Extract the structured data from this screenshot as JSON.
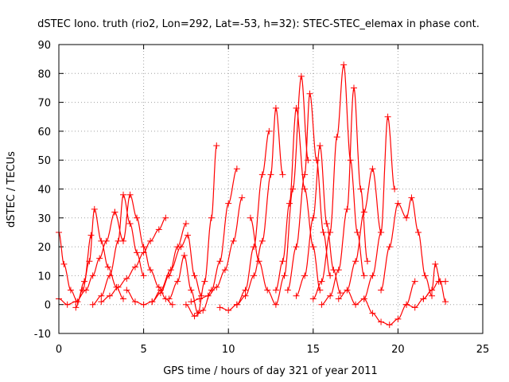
{
  "chart_data": {
    "type": "scatter",
    "title": "dSTEC Iono. truth (rio2, Lon=292, Lat=-53, h=32): STEC-STEC_elemax in phase cont.",
    "xlabel": "GPS time / hours of day 321 of year 2011",
    "ylabel": "dSTEC  / TECUs",
    "xlim": [
      0,
      25
    ],
    "ylim": [
      -10,
      90
    ],
    "xticks": [
      0,
      5,
      10,
      15,
      20,
      25
    ],
    "yticks": [
      -10,
      0,
      10,
      20,
      30,
      40,
      50,
      60,
      70,
      80,
      90
    ],
    "grid": true,
    "legend": "none",
    "marker": "plus",
    "color": "#ff0000",
    "series": [
      {
        "x": [
          0.0,
          0.3,
          0.7,
          1.1,
          1.5,
          1.9
        ],
        "y": [
          25,
          14,
          5,
          1,
          8,
          24
        ]
      },
      {
        "x": [
          0.0,
          0.5,
          1.0,
          1.6,
          2.0,
          2.4,
          2.8,
          3.3
        ],
        "y": [
          2,
          0,
          1,
          5,
          10,
          16,
          22,
          32
        ]
      },
      {
        "x": [
          1.0,
          1.4,
          1.8,
          2.1,
          2.5,
          2.9,
          3.4,
          3.8
        ],
        "y": [
          -1,
          5,
          15,
          33,
          22,
          13,
          6,
          2
        ]
      },
      {
        "x": [
          2.0,
          2.5,
          3.0,
          3.5,
          3.8,
          4.2,
          4.6,
          5.0
        ],
        "y": [
          0,
          3,
          10,
          22,
          38,
          28,
          18,
          10
        ]
      },
      {
        "x": [
          3.3,
          3.8,
          4.2,
          4.6,
          5.0,
          5.4,
          5.9,
          6.3,
          6.7
        ],
        "y": [
          32,
          22,
          38,
          30,
          20,
          12,
          6,
          2,
          0
        ]
      },
      {
        "x": [
          2.5,
          3.0,
          3.5,
          4.0,
          4.5,
          5.0,
          5.4,
          5.9,
          6.3
        ],
        "y": [
          1,
          3,
          6,
          9,
          13,
          18,
          22,
          26,
          30
        ]
      },
      {
        "x": [
          4.0,
          4.5,
          5.0,
          5.5,
          6.0,
          6.5,
          7.0,
          7.5
        ],
        "y": [
          5,
          1,
          0,
          1,
          4,
          10,
          20,
          28
        ]
      },
      {
        "x": [
          5.5,
          6.0,
          6.6,
          7.2,
          7.6,
          8.0,
          8.4
        ],
        "y": [
          1,
          5,
          12,
          20,
          24,
          10,
          3
        ]
      },
      {
        "x": [
          6.5,
          7.0,
          7.4,
          7.8,
          8.2,
          8.6,
          9.0,
          9.3
        ],
        "y": [
          2,
          8,
          17,
          5,
          -3,
          8,
          30,
          55
        ]
      },
      {
        "x": [
          7.5,
          8.0,
          8.5,
          9.0,
          9.5,
          10.0,
          10.5
        ],
        "y": [
          0,
          -4,
          -2,
          5,
          15,
          35,
          47
        ]
      },
      {
        "x": [
          7.8,
          8.3,
          8.8,
          9.3,
          9.8,
          10.3,
          10.8
        ],
        "y": [
          1,
          2,
          3,
          6,
          12,
          22,
          37
        ]
      },
      {
        "x": [
          9.5,
          10.0,
          10.5,
          11.0,
          11.5,
          12.0,
          12.4
        ],
        "y": [
          -1,
          -2,
          0,
          5,
          20,
          45,
          60
        ]
      },
      {
        "x": [
          10.5,
          11.0,
          11.5,
          12.0,
          12.5,
          12.8,
          13.2
        ],
        "y": [
          0,
          3,
          10,
          22,
          45,
          68,
          45
        ]
      },
      {
        "x": [
          11.3,
          11.8,
          12.3,
          12.8,
          13.3,
          13.8,
          14.3,
          14.7
        ],
        "y": [
          30,
          15,
          5,
          0,
          10,
          40,
          79,
          50
        ]
      },
      {
        "x": [
          12.8,
          13.2,
          13.6,
          14.0,
          14.5,
          15.0,
          15.4
        ],
        "y": [
          5,
          15,
          35,
          68,
          40,
          20,
          5
        ]
      },
      {
        "x": [
          13.5,
          14.0,
          14.5,
          14.8,
          15.2,
          15.6,
          16.0
        ],
        "y": [
          5,
          20,
          45,
          73,
          50,
          25,
          10
        ]
      },
      {
        "x": [
          14.0,
          14.5,
          15.0,
          15.4,
          15.8,
          16.2,
          16.6
        ],
        "y": [
          3,
          10,
          30,
          55,
          28,
          12,
          4
        ]
      },
      {
        "x": [
          15.0,
          15.5,
          16.0,
          16.4,
          16.8,
          17.2,
          17.6,
          18.0
        ],
        "y": [
          2,
          8,
          25,
          58,
          83,
          50,
          25,
          10
        ]
      },
      {
        "x": [
          15.5,
          16.0,
          16.5,
          17.0,
          17.4,
          17.8,
          18.2
        ],
        "y": [
          0,
          3,
          12,
          33,
          75,
          40,
          15
        ]
      },
      {
        "x": [
          16.5,
          17.0,
          17.5,
          18.0,
          18.5,
          19.0
        ],
        "y": [
          2,
          5,
          15,
          32,
          47,
          25
        ]
      },
      {
        "x": [
          17.0,
          17.5,
          18.0,
          18.5,
          19.0,
          19.4,
          19.8
        ],
        "y": [
          5,
          0,
          2,
          10,
          25,
          65,
          40
        ]
      },
      {
        "x": [
          18.0,
          18.5,
          19.0,
          19.5,
          20.0,
          20.5,
          21.0
        ],
        "y": [
          2,
          -3,
          -6,
          -7,
          -5,
          0,
          8
        ]
      },
      {
        "x": [
          19.0,
          19.5,
          20.0,
          20.5,
          20.8,
          21.2,
          21.6,
          22.0
        ],
        "y": [
          5,
          20,
          35,
          30,
          37,
          25,
          10,
          3
        ]
      },
      {
        "x": [
          20.5,
          21.0,
          21.5,
          22.0,
          22.2,
          22.5,
          22.8
        ],
        "y": [
          0,
          -1,
          2,
          5,
          14,
          8,
          1
        ]
      },
      {
        "x": [
          21.5,
          22.0,
          22.4,
          22.8
        ],
        "y": [
          2,
          5,
          8,
          8
        ]
      }
    ]
  }
}
